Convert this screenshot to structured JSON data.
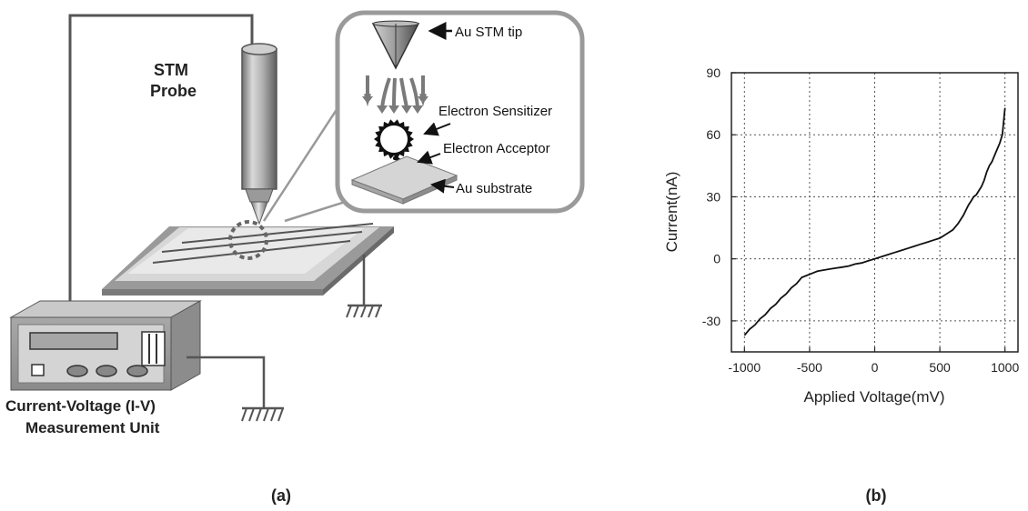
{
  "panel_a": {
    "caption": "(a)",
    "stm_probe_label_line1": "STM",
    "stm_probe_label_line2": "Probe",
    "measurement_label_line1": "Current-Voltage (I-V)",
    "measurement_label_line2": "Measurement Unit",
    "inset": {
      "tip_label": "Au STM tip",
      "sensitizer_label": "Electron Sensitizer",
      "acceptor_label": "Electron Acceptor",
      "substrate_label": "Au substrate"
    }
  },
  "panel_b": {
    "caption": "(b)"
  },
  "chart_data": {
    "type": "line",
    "xlabel": "Applied Voltage(mV)",
    "ylabel": "Current(nA)",
    "xlim": [
      -1100,
      1100
    ],
    "ylim": [
      -45,
      90
    ],
    "xticks": [
      -1000,
      -500,
      0,
      500,
      1000
    ],
    "yticks": [
      -30,
      0,
      30,
      60,
      90
    ],
    "xtick_labels": [
      "-1000",
      "-500",
      "0",
      "500",
      "1000"
    ],
    "ytick_labels": [
      "-30",
      "0",
      "30",
      "60",
      "90"
    ],
    "grid": true,
    "series": [
      {
        "x": [
          -1000,
          -960,
          -920,
          -880,
          -840,
          -800,
          -760,
          -720,
          -680,
          -640,
          -600,
          -560,
          -520,
          -480,
          -440,
          -400,
          -350,
          -300,
          -250,
          -200,
          -150,
          -100,
          -50,
          0,
          50,
          100,
          150,
          200,
          250,
          300,
          350,
          400,
          450,
          500,
          550,
          600,
          640,
          680,
          720,
          740,
          760,
          780,
          800,
          820,
          840,
          860,
          880,
          900,
          920,
          940,
          960,
          980,
          1000
        ],
        "y": [
          -37,
          -34,
          -32,
          -29,
          -27,
          -24,
          -22,
          -19,
          -17,
          -14,
          -12,
          -9,
          -8,
          -7,
          -6,
          -5.5,
          -5,
          -4.5,
          -4,
          -3.5,
          -2.5,
          -2,
          -1,
          0,
          1,
          2,
          3,
          4,
          5,
          6,
          7,
          8,
          9,
          10,
          12,
          14,
          17,
          21,
          26,
          28,
          30,
          31,
          33,
          35,
          38,
          42,
          45,
          47,
          50,
          53,
          56,
          60,
          73
        ]
      }
    ]
  }
}
